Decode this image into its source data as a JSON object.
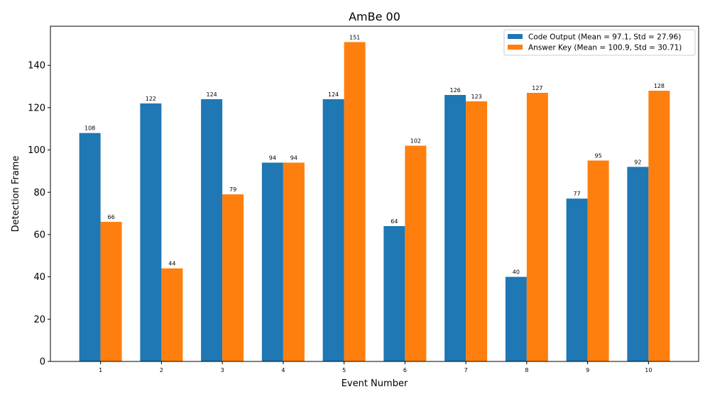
{
  "chart_data": {
    "type": "bar",
    "title": "AmBe 00",
    "xlabel": "Event Number",
    "ylabel": "Detection Frame",
    "categories": [
      "1",
      "2",
      "3",
      "4",
      "5",
      "6",
      "7",
      "8",
      "9",
      "10"
    ],
    "ylim": [
      0,
      158.5
    ],
    "yticks": [
      0,
      20,
      40,
      60,
      80,
      100,
      120,
      140
    ],
    "grid": false,
    "legend_position": "top-right",
    "series": [
      {
        "name": "Code Output (Mean = 97.1, Std = 27.96)",
        "color": "#1f77b4",
        "values": [
          108,
          122,
          124,
          94,
          124,
          64,
          126,
          40,
          77,
          92
        ]
      },
      {
        "name": "Answer Key (Mean = 100.9, Std = 30.71)",
        "color": "#ff7f0e",
        "values": [
          66,
          44,
          79,
          94,
          151,
          102,
          123,
          127,
          95,
          128
        ]
      }
    ]
  }
}
